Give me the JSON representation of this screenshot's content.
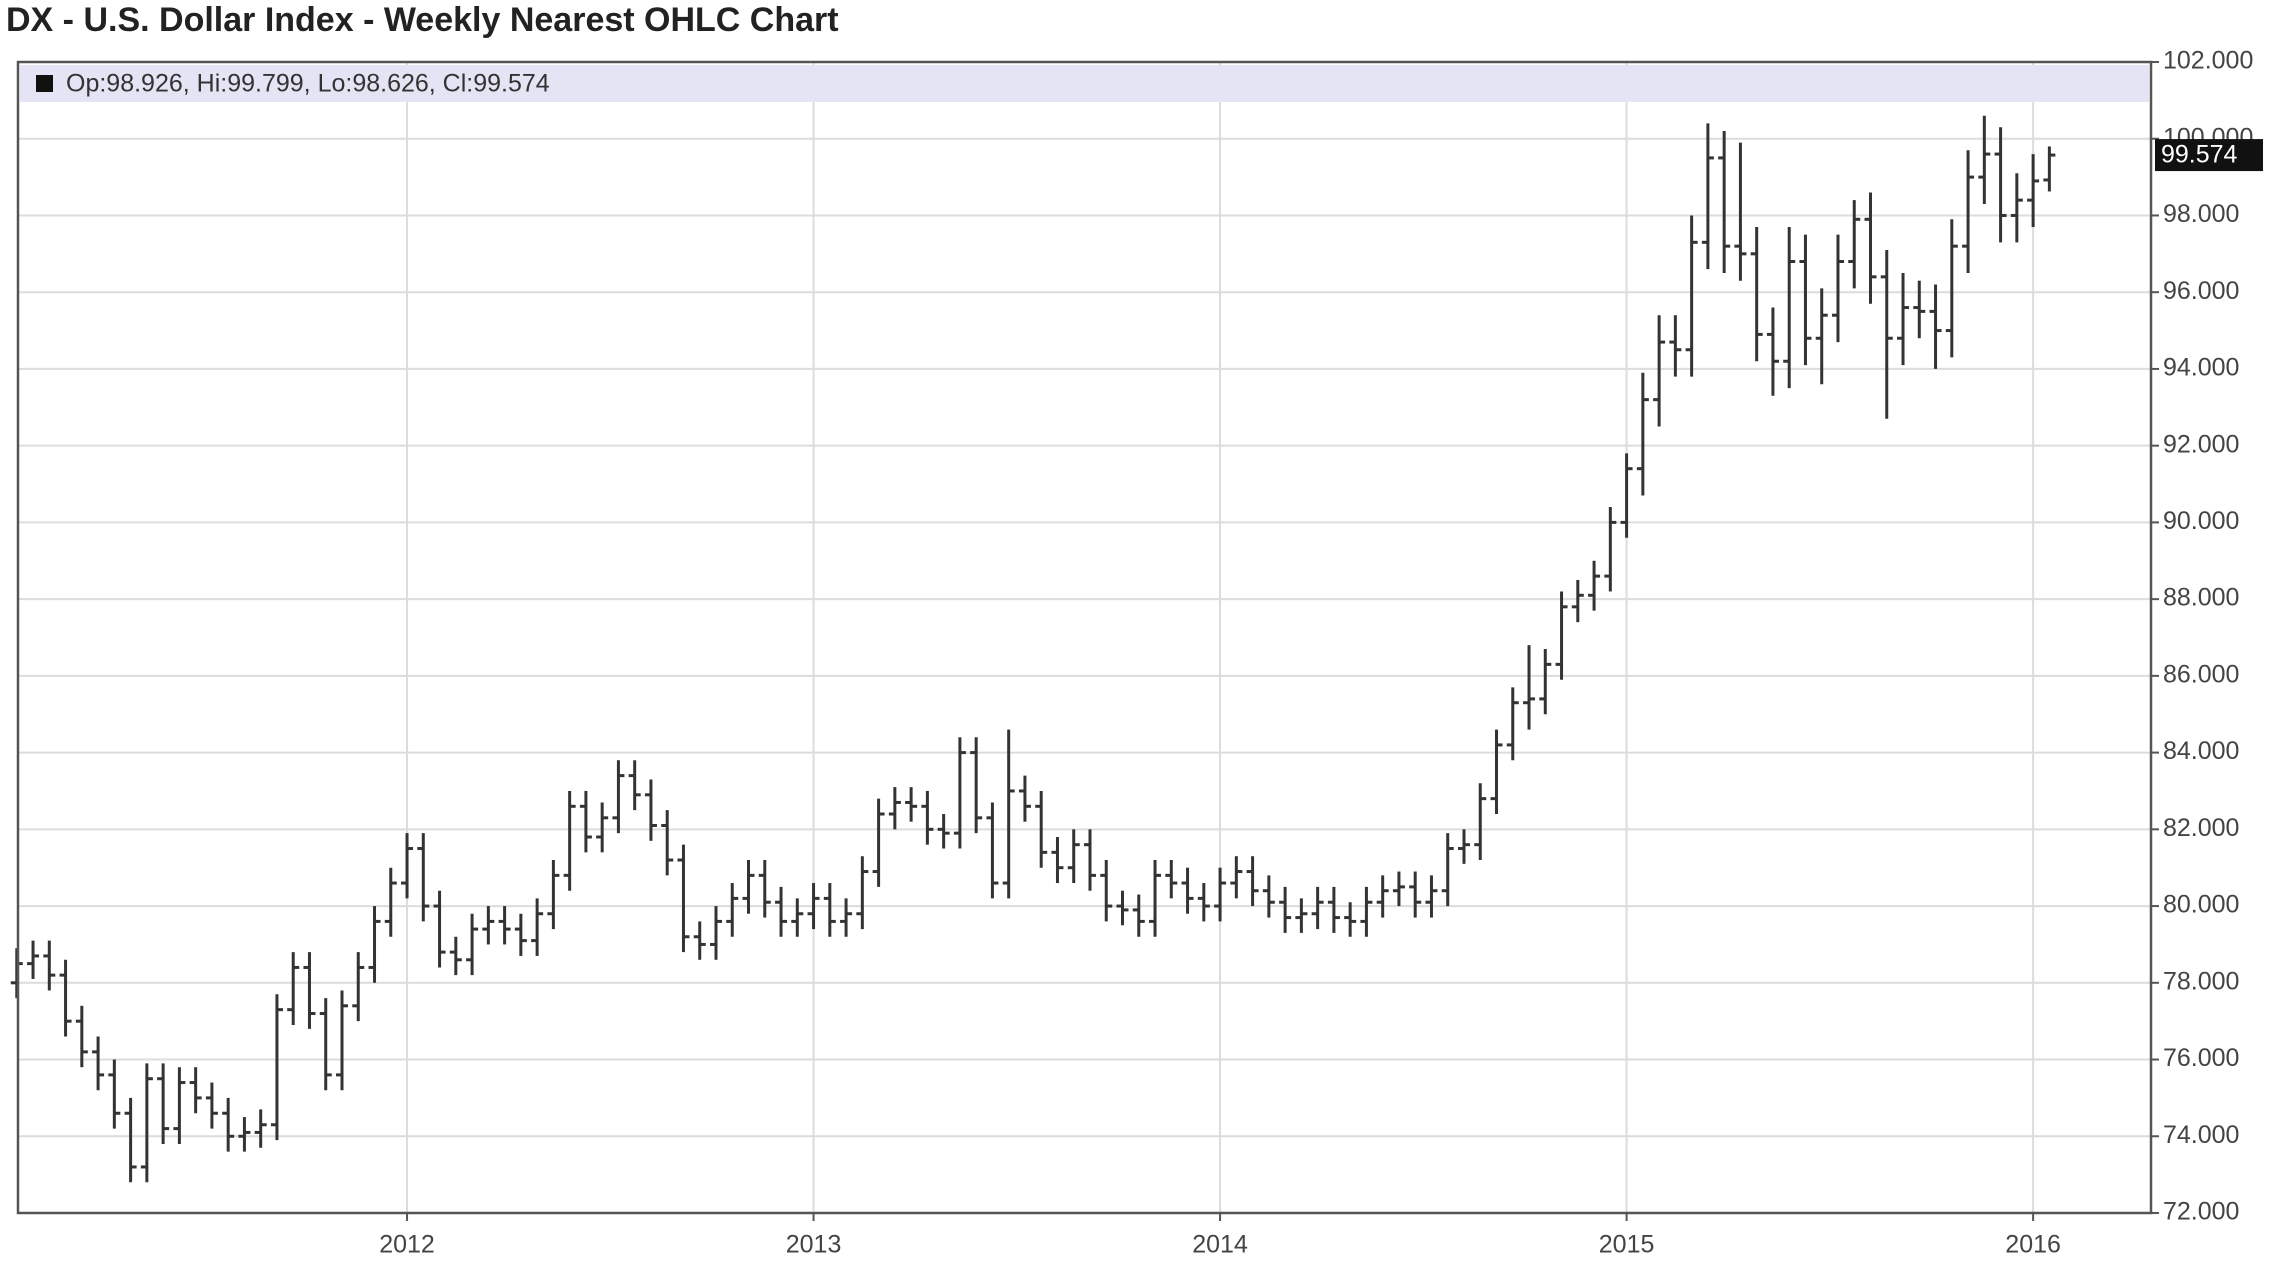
{
  "chart_data": {
    "type": "ohlc",
    "title": "DX - U.S. Dollar Index - Weekly Nearest OHLC Chart",
    "legend_text": "Op:98.926, Hi:99.799, Lo:98.626, Cl:99.574",
    "color": "#333333",
    "grid": true,
    "xlim": [
      2011.043,
      2016.29
    ],
    "xticks": [
      2012,
      2013,
      2014,
      2015,
      2016
    ],
    "ylim": [
      72,
      102
    ],
    "yticks": [
      {
        "value": 72,
        "label": "72.000"
      },
      {
        "value": 74,
        "label": "74.000"
      },
      {
        "value": 76,
        "label": "76.000"
      },
      {
        "value": 78,
        "label": "78.000"
      },
      {
        "value": 80,
        "label": "80.000"
      },
      {
        "value": 82,
        "label": "82.000"
      },
      {
        "value": 84,
        "label": "84.000"
      },
      {
        "value": 86,
        "label": "86.000"
      },
      {
        "value": 88,
        "label": "88.000"
      },
      {
        "value": 90,
        "label": "90.000"
      },
      {
        "value": 92,
        "label": "92.000"
      },
      {
        "value": 94,
        "label": "94.000"
      },
      {
        "value": 96,
        "label": "96.000"
      },
      {
        "value": 98,
        "label": "98.000"
      },
      {
        "value": 100,
        "label": "100.000"
      },
      {
        "value": 102,
        "label": "102.000"
      }
    ],
    "x": [
      2011.04,
      2011.08,
      2011.12,
      2011.16,
      2011.2,
      2011.24,
      2011.28,
      2011.32,
      2011.36,
      2011.4,
      2011.44,
      2011.48,
      2011.52,
      2011.56,
      2011.6,
      2011.64,
      2011.68,
      2011.72,
      2011.76,
      2011.8,
      2011.84,
      2011.88,
      2011.92,
      2011.96,
      2012,
      2012.04,
      2012.08,
      2012.12,
      2012.16,
      2012.2,
      2012.24,
      2012.28,
      2012.32,
      2012.36,
      2012.4,
      2012.44,
      2012.48,
      2012.52,
      2012.56,
      2012.6,
      2012.64,
      2012.68,
      2012.72,
      2012.76,
      2012.8,
      2012.84,
      2012.88,
      2012.92,
      2012.96,
      2013,
      2013.04,
      2013.08,
      2013.12,
      2013.16,
      2013.2,
      2013.24,
      2013.28,
      2013.32,
      2013.36,
      2013.4,
      2013.44,
      2013.48,
      2013.52,
      2013.56,
      2013.6,
      2013.64,
      2013.68,
      2013.72,
      2013.76,
      2013.8,
      2013.84,
      2013.88,
      2013.92,
      2013.96,
      2014,
      2014.04,
      2014.08,
      2014.12,
      2014.16,
      2014.2,
      2014.24,
      2014.28,
      2014.32,
      2014.36,
      2014.4,
      2014.44,
      2014.48,
      2014.52,
      2014.56,
      2014.6,
      2014.64,
      2014.68,
      2014.72,
      2014.76,
      2014.8,
      2014.84,
      2014.88,
      2014.92,
      2014.96,
      2015,
      2015.04,
      2015.08,
      2015.12,
      2015.16,
      2015.2,
      2015.24,
      2015.28,
      2015.32,
      2015.36,
      2015.4,
      2015.44,
      2015.48,
      2015.52,
      2015.56,
      2015.6,
      2015.64,
      2015.68,
      2015.72,
      2015.76,
      2015.8,
      2015.84,
      2015.88,
      2015.92,
      2015.96,
      2016,
      2016.04
    ],
    "open": [
      78.0,
      78.5,
      78.7,
      78.2,
      77.0,
      76.2,
      75.6,
      74.6,
      73.2,
      75.5,
      74.2,
      75.4,
      75.0,
      74.6,
      74.0,
      74.1,
      74.3,
      77.3,
      78.4,
      77.2,
      75.6,
      77.4,
      78.4,
      79.6,
      80.6,
      81.5,
      80.0,
      78.8,
      78.6,
      79.4,
      79.6,
      79.4,
      79.1,
      79.8,
      80.8,
      82.6,
      81.8,
      82.3,
      83.4,
      82.9,
      82.1,
      81.2,
      79.2,
      79.0,
      79.6,
      80.2,
      80.8,
      80.1,
      79.6,
      79.8,
      80.2,
      79.6,
      79.8,
      80.9,
      82.4,
      82.7,
      82.6,
      82.0,
      81.9,
      84.0,
      82.3,
      80.6,
      83.0,
      82.6,
      81.4,
      81.0,
      81.6,
      80.8,
      80.0,
      79.9,
      79.6,
      80.8,
      80.6,
      80.2,
      80.0,
      80.6,
      80.9,
      80.4,
      80.1,
      79.7,
      79.8,
      80.1,
      79.7,
      79.6,
      80.1,
      80.4,
      80.5,
      80.1,
      80.4,
      81.5,
      81.6,
      82.8,
      84.2,
      85.3,
      85.4,
      86.3,
      87.8,
      88.1,
      88.6,
      90.0,
      91.4,
      93.2,
      94.7,
      94.5,
      97.3,
      99.5,
      97.2,
      97.0,
      94.9,
      94.2,
      96.8,
      94.8,
      95.4,
      96.8,
      97.9,
      96.4,
      94.8,
      95.6,
      95.5,
      95.0,
      97.2,
      99.0,
      99.6,
      98.0,
      98.4,
      98.926
    ],
    "high": [
      78.9,
      79.1,
      79.1,
      78.6,
      77.4,
      76.6,
      76.0,
      75.0,
      75.9,
      75.9,
      75.8,
      75.8,
      75.4,
      75.0,
      74.5,
      74.7,
      77.7,
      78.8,
      78.8,
      77.6,
      77.8,
      78.8,
      80.0,
      81.0,
      81.9,
      81.9,
      80.4,
      79.2,
      79.8,
      80.0,
      80.0,
      79.8,
      80.2,
      81.2,
      83.0,
      83.0,
      82.7,
      83.8,
      83.8,
      83.3,
      82.5,
      81.6,
      79.6,
      80.0,
      80.6,
      81.2,
      81.2,
      80.5,
      80.2,
      80.6,
      80.6,
      80.2,
      81.3,
      82.8,
      83.1,
      83.1,
      83.0,
      82.4,
      84.4,
      84.4,
      82.7,
      84.6,
      83.4,
      83.0,
      81.8,
      82.0,
      82.0,
      81.2,
      80.4,
      80.3,
      81.2,
      81.2,
      81.0,
      80.6,
      81.0,
      81.3,
      81.3,
      80.8,
      80.5,
      80.2,
      80.5,
      80.5,
      80.1,
      80.5,
      80.8,
      80.9,
      80.9,
      80.8,
      81.9,
      82.0,
      83.2,
      84.6,
      85.7,
      86.8,
      86.7,
      88.2,
      88.5,
      89.0,
      90.4,
      91.8,
      93.9,
      95.4,
      95.4,
      98.0,
      100.4,
      100.2,
      99.9,
      97.7,
      95.6,
      97.7,
      97.5,
      96.1,
      97.5,
      98.4,
      98.6,
      97.1,
      96.5,
      96.3,
      96.2,
      97.9,
      99.7,
      100.6,
      100.3,
      99.1,
      99.6,
      99.799
    ],
    "low": [
      77.6,
      78.1,
      77.8,
      76.6,
      75.8,
      75.2,
      74.2,
      72.8,
      72.8,
      73.8,
      73.8,
      74.6,
      74.2,
      73.6,
      73.6,
      73.7,
      73.9,
      76.9,
      76.8,
      75.2,
      75.2,
      77.0,
      78.0,
      79.2,
      80.2,
      79.6,
      78.4,
      78.2,
      78.2,
      79.0,
      79.0,
      78.7,
      78.7,
      79.4,
      80.4,
      81.4,
      81.4,
      81.9,
      82.5,
      81.7,
      80.8,
      78.8,
      78.6,
      78.6,
      79.2,
      79.8,
      79.7,
      79.2,
      79.2,
      79.4,
      79.2,
      79.2,
      79.4,
      80.5,
      82.0,
      82.2,
      81.6,
      81.5,
      81.5,
      81.9,
      80.2,
      80.2,
      82.2,
      81.0,
      80.6,
      80.6,
      80.4,
      79.6,
      79.5,
      79.2,
      79.2,
      80.2,
      79.8,
      79.6,
      79.6,
      80.2,
      80.0,
      79.7,
      79.3,
      79.3,
      79.4,
      79.3,
      79.2,
      79.2,
      79.7,
      80.0,
      79.7,
      79.7,
      80.0,
      81.1,
      81.2,
      82.4,
      83.8,
      84.6,
      85.0,
      85.9,
      87.4,
      87.7,
      88.2,
      89.6,
      90.7,
      92.5,
      93.8,
      93.8,
      96.6,
      96.5,
      96.3,
      94.2,
      93.3,
      93.5,
      94.1,
      93.6,
      94.7,
      96.1,
      95.7,
      92.7,
      94.1,
      94.8,
      94.0,
      94.3,
      96.5,
      98.3,
      97.3,
      97.3,
      97.7,
      98.626
    ],
    "close": [
      78.5,
      78.7,
      78.2,
      77.0,
      76.2,
      75.6,
      74.6,
      73.2,
      75.5,
      74.2,
      75.4,
      75.0,
      74.6,
      74.0,
      74.1,
      74.3,
      77.3,
      78.4,
      77.2,
      75.6,
      77.4,
      78.4,
      79.6,
      80.6,
      81.5,
      80.0,
      78.8,
      78.6,
      79.4,
      79.6,
      79.4,
      79.1,
      79.8,
      80.8,
      82.6,
      81.8,
      82.3,
      83.4,
      82.9,
      82.1,
      81.2,
      79.2,
      79.0,
      79.6,
      80.2,
      80.8,
      80.1,
      79.6,
      79.8,
      80.2,
      79.6,
      79.8,
      80.9,
      82.4,
      82.7,
      82.6,
      82.0,
      81.9,
      84.0,
      82.3,
      80.6,
      83.0,
      82.6,
      81.4,
      81.0,
      81.6,
      80.8,
      80.0,
      79.9,
      79.6,
      80.8,
      80.6,
      80.2,
      80.0,
      80.6,
      80.9,
      80.4,
      80.1,
      79.7,
      79.8,
      80.1,
      79.7,
      79.6,
      80.1,
      80.4,
      80.5,
      80.1,
      80.4,
      81.5,
      81.6,
      82.8,
      84.2,
      85.3,
      85.4,
      86.3,
      87.8,
      88.1,
      88.6,
      90.0,
      91.4,
      93.2,
      94.7,
      94.5,
      97.3,
      99.5,
      97.2,
      97.0,
      94.9,
      94.2,
      96.8,
      94.8,
      95.4,
      96.8,
      97.9,
      96.4,
      94.8,
      95.6,
      95.5,
      95.0,
      97.2,
      99.0,
      99.6,
      98.0,
      98.4,
      98.9,
      99.574
    ]
  }
}
